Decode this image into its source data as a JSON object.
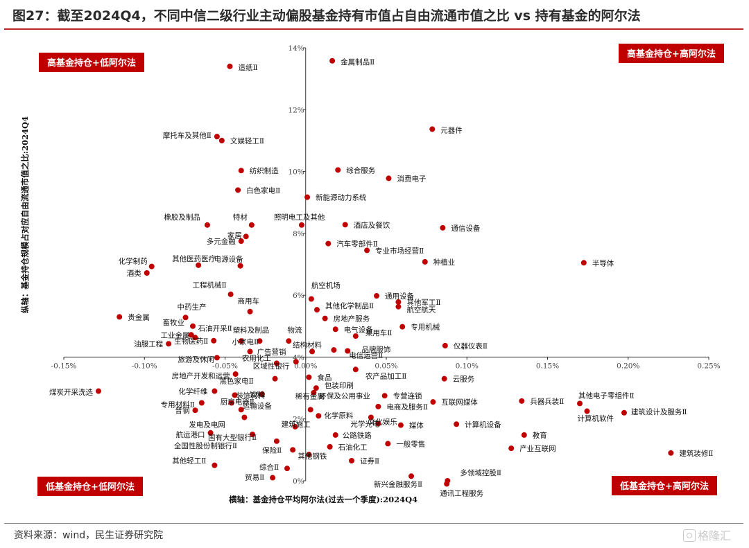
{
  "header": {
    "title": "图27：截至2024Q4，不同中信二级行业主动偏股基金持有市值占自由流通市值之比 vs 持有基金的阿尔法"
  },
  "footer": {
    "source": "资料来源：wind，民生证券研究院",
    "watermark": "格隆汇"
  },
  "colors": {
    "accent": "#c00000",
    "rule": "#b8252a",
    "points": "#c00000"
  },
  "quadrants": {
    "top_left": "高基金持仓+低阿尔法",
    "top_right": "高基金持仓+高阿尔法",
    "bottom_left": "低基金持仓+低阿尔法",
    "bottom_right": "低基金持仓+高阿尔法"
  },
  "chart_data": {
    "type": "scatter",
    "xlabel": "横轴：基金持仓平均阿尔法(过去一个季度):2024Q4",
    "ylabel": "纵轴：基金持仓规模占对应自由流通市值之比:2024Q4",
    "xlim": [
      -0.0015,
      0.0025
    ],
    "ylim": [
      0,
      0.14
    ],
    "x_ticks": [
      {
        "value": -0.0015,
        "label": "-0.15%"
      },
      {
        "value": -0.001,
        "label": "-0.10%"
      },
      {
        "value": -0.0005,
        "label": "-0.05%"
      },
      {
        "value": 0.0,
        "label": "0.00%"
      },
      {
        "value": 0.0005,
        "label": "0.05%"
      },
      {
        "value": 0.001,
        "label": "0.10%"
      },
      {
        "value": 0.0015,
        "label": "0.15%"
      },
      {
        "value": 0.002,
        "label": "0.20%"
      },
      {
        "value": 0.0025,
        "label": "0.25%"
      }
    ],
    "y_ticks": [
      {
        "value": 0.0,
        "label": "0%"
      },
      {
        "value": 0.02,
        "label": "2%"
      },
      {
        "value": 0.04,
        "label": "4%"
      },
      {
        "value": 0.06,
        "label": "6%"
      },
      {
        "value": 0.08,
        "label": "8%"
      },
      {
        "value": 0.1,
        "label": "10%"
      },
      {
        "value": 0.12,
        "label": "12%"
      },
      {
        "value": 0.14,
        "label": "14%"
      }
    ],
    "points": [
      {
        "name": "造纸Ⅱ",
        "x": -0.00047,
        "y": 0.134
      },
      {
        "name": "金属制品Ⅱ",
        "x": 0.000165,
        "y": 0.1358
      },
      {
        "name": "元器件",
        "x": 0.000785,
        "y": 0.1137
      },
      {
        "name": "摩托车及其他Ⅱ",
        "x": -0.00055,
        "y": 0.1113
      },
      {
        "name": "文娱轻工Ⅱ",
        "x": -0.00052,
        "y": 0.11
      },
      {
        "name": "纺织制造",
        "x": -0.0004,
        "y": 0.1003
      },
      {
        "name": "综合服务",
        "x": 0.0002,
        "y": 0.1005
      },
      {
        "name": "消费电子",
        "x": 0.000515,
        "y": 0.0978
      },
      {
        "name": "白色家电Ⅱ",
        "x": -0.00042,
        "y": 0.094
      },
      {
        "name": "新能源动力系统",
        "x": 1e-05,
        "y": 0.0917
      },
      {
        "name": "橡胶及制品",
        "x": -0.00061,
        "y": 0.0827
      },
      {
        "name": "特材",
        "x": -0.000335,
        "y": 0.0827
      },
      {
        "name": "照明电工及其他",
        "x": -2.5e-05,
        "y": 0.0827
      },
      {
        "name": "酒店及餐饮",
        "x": 0.000245,
        "y": 0.0828
      },
      {
        "name": "通信设备",
        "x": 0.00085,
        "y": 0.0818
      },
      {
        "name": "家居",
        "x": -0.00037,
        "y": 0.079
      },
      {
        "name": "多元金融",
        "x": -0.0004,
        "y": 0.0775
      },
      {
        "name": "汽车零部件Ⅱ",
        "x": 0.00014,
        "y": 0.0767
      },
      {
        "name": "专业市场经营Ⅱ",
        "x": 0.00038,
        "y": 0.0745
      },
      {
        "name": "其他医药医疗",
        "x": -0.000665,
        "y": 0.0697
      },
      {
        "name": "电源设备",
        "x": -0.000405,
        "y": 0.0695
      },
      {
        "name": "化学制药",
        "x": -0.000955,
        "y": 0.0693
      },
      {
        "name": "种植业",
        "x": 0.00074,
        "y": 0.0708
      },
      {
        "name": "半导体",
        "x": 0.001725,
        "y": 0.0705
      },
      {
        "name": "酒类",
        "x": -0.000985,
        "y": 0.0672
      },
      {
        "name": "工程机械Ⅱ",
        "x": -0.000465,
        "y": 0.0603
      },
      {
        "name": "航空机场",
        "x": 3.5e-05,
        "y": 0.0588
      },
      {
        "name": "通用设备",
        "x": 0.00044,
        "y": 0.0598
      },
      {
        "name": "其他军工Ⅱ",
        "x": 0.000575,
        "y": 0.0578
      },
      {
        "name": "其他化学制品Ⅱ",
        "x": 7e-05,
        "y": 0.0553
      },
      {
        "name": "航空航天",
        "x": 0.000575,
        "y": 0.0563
      },
      {
        "name": "商用车",
        "x": -0.000345,
        "y": 0.0547
      },
      {
        "name": "贵金属",
        "x": -0.001155,
        "y": 0.053
      },
      {
        "name": "中药生产",
        "x": -0.000745,
        "y": 0.0528
      },
      {
        "name": "房地产服务",
        "x": 0.00012,
        "y": 0.0525
      },
      {
        "name": "畜牧业",
        "x": -0.0007,
        "y": 0.05
      },
      {
        "name": "专用机械",
        "x": 0.0006,
        "y": 0.0498
      },
      {
        "name": "石油开采Ⅱ",
        "x": -0.00071,
        "y": 0.0472
      },
      {
        "name": "工业金属",
        "x": -0.000685,
        "y": 0.0463
      },
      {
        "name": "电气设备",
        "x": 0.000185,
        "y": 0.049
      },
      {
        "name": "油服工程",
        "x": -0.00085,
        "y": 0.0443
      },
      {
        "name": "乘用车Ⅱ",
        "x": 0.00031,
        "y": 0.0468
      },
      {
        "name": "塑料及制品",
        "x": -0.0004,
        "y": 0.0452
      },
      {
        "name": "小家电Ⅱ",
        "x": -0.000285,
        "y": 0.0452
      },
      {
        "name": "物流",
        "x": -0.000105,
        "y": 0.0452
      },
      {
        "name": "仪器仪表Ⅱ",
        "x": 0.000865,
        "y": 0.0437
      },
      {
        "name": "生物医药Ⅱ",
        "x": -0.00057,
        "y": 0.0453
      },
      {
        "name": "品牌服饰",
        "x": 0.000175,
        "y": 0.0423
      },
      {
        "name": "结构材料",
        "x": 4e-05,
        "y": 0.0418
      },
      {
        "name": "电信运营Ⅱ",
        "x": 0.00026,
        "y": 0.042
      },
      {
        "name": "广告营销",
        "x": -0.000345,
        "y": 0.0418
      },
      {
        "name": "旅游及休闲",
        "x": -0.00055,
        "y": 0.0398
      },
      {
        "name": "农用化工",
        "x": -0.00018,
        "y": 0.038
      },
      {
        "name": "区域性银行",
        "x": -6e-05,
        "y": 0.0385
      },
      {
        "name": "农产品加工Ⅱ",
        "x": 0.00031,
        "y": 0.036
      },
      {
        "name": "云服务",
        "x": 0.00086,
        "y": 0.033
      },
      {
        "name": "房地产开发和运营",
        "x": -0.000435,
        "y": 0.0345
      },
      {
        "name": "黑色家电Ⅱ",
        "x": -0.00019,
        "y": 0.033
      },
      {
        "name": "食品",
        "x": 2e-05,
        "y": 0.0335
      },
      {
        "name": "包装印刷",
        "x": 6.5e-05,
        "y": 0.03
      },
      {
        "name": "煤炭开采洗选",
        "x": -0.001285,
        "y": 0.029
      },
      {
        "name": "化学纤维",
        "x": -0.000565,
        "y": 0.029
      },
      {
        "name": "饮料",
        "x": -0.00027,
        "y": 0.028
      },
      {
        "name": "环保及公用事业",
        "x": 5e-05,
        "y": 0.0285
      },
      {
        "name": "专营连锁",
        "x": 0.00049,
        "y": 0.0275
      },
      {
        "name": "装饰材料",
        "x": -0.00044,
        "y": 0.0277
      },
      {
        "name": "专用材料Ⅱ",
        "x": -0.000645,
        "y": 0.0252
      },
      {
        "name": "厨房电器Ⅱ",
        "x": -0.00046,
        "y": 0.0252
      },
      {
        "name": "互联网媒体",
        "x": 0.00079,
        "y": 0.0255
      },
      {
        "name": "兵器兵装Ⅱ",
        "x": 0.00134,
        "y": 0.0258
      },
      {
        "name": "其他电子零组件Ⅱ",
        "x": 0.0017,
        "y": 0.025
      },
      {
        "name": "电商及服务Ⅱ",
        "x": 0.00045,
        "y": 0.024
      },
      {
        "name": "普钢",
        "x": -0.000685,
        "y": 0.0228
      },
      {
        "name": "运输设备",
        "x": -0.0004,
        "y": 0.023
      },
      {
        "name": "稀有金属",
        "x": 3e-05,
        "y": 0.023
      },
      {
        "name": "建筑设计及服务Ⅱ",
        "x": 0.001975,
        "y": 0.022
      },
      {
        "name": "计算机软件",
        "x": 0.001745,
        "y": 0.0225
      },
      {
        "name": "化学原料",
        "x": 8e-05,
        "y": 0.021
      },
      {
        "name": "文化娱乐",
        "x": 0.000405,
        "y": 0.0205
      },
      {
        "name": "发电及电网",
        "x": -0.00038,
        "y": 0.0205
      },
      {
        "name": "光学光电",
        "x": 0.00045,
        "y": 0.0185
      },
      {
        "name": "媒体",
        "x": 0.00059,
        "y": 0.018
      },
      {
        "name": "计算机设备",
        "x": 0.000935,
        "y": 0.0183
      },
      {
        "name": "航运港口",
        "x": -0.00059,
        "y": 0.0155
      },
      {
        "name": "国有大型银行Ⅱ",
        "x": -0.00033,
        "y": 0.015
      },
      {
        "name": "建筑施工",
        "x": -6.5e-05,
        "y": 0.0175
      },
      {
        "name": "公路铁路",
        "x": 0.000185,
        "y": 0.0148
      },
      {
        "name": "教育",
        "x": 0.001355,
        "y": 0.0148
      },
      {
        "name": "全国性股份制银行Ⅱ",
        "x": -0.00018,
        "y": 0.0128
      },
      {
        "name": "一般零售",
        "x": 0.00051,
        "y": 0.012
      },
      {
        "name": "保险Ⅱ",
        "x": -8e-05,
        "y": 0.01
      },
      {
        "name": "石油化工",
        "x": 0.00015,
        "y": 0.011
      },
      {
        "name": "产业互联网",
        "x": 0.001275,
        "y": 0.0105
      },
      {
        "name": "建筑装修Ⅱ",
        "x": 0.002265,
        "y": 0.009
      },
      {
        "name": "其他钢铁",
        "x": 2e-05,
        "y": 0.0085
      },
      {
        "name": "证券Ⅱ",
        "x": 0.000285,
        "y": 0.0065
      },
      {
        "name": "其他轻工Ⅱ",
        "x": -0.000565,
        "y": 0.005
      },
      {
        "name": "综合Ⅱ",
        "x": -0.000115,
        "y": 0.004
      },
      {
        "name": "贸易Ⅱ",
        "x": -0.000205,
        "y": 0.001
      },
      {
        "name": "多领域控股Ⅱ",
        "x": 0.00088,
        "y": 0.0
      },
      {
        "name": "新兴金融服务Ⅱ",
        "x": 0.000655,
        "y": 0.0015
      },
      {
        "name": "通讯工程服务",
        "x": 0.000875,
        "y": -0.001
      }
    ]
  }
}
